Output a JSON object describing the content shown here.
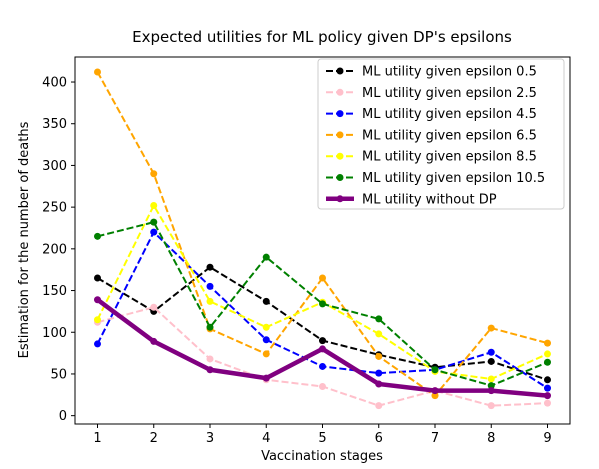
{
  "chart_data": {
    "type": "line",
    "title": "Expected utilities for ML policy given DP's epsilons",
    "xlabel": "Vaccination stages",
    "ylabel": "Estimation for the number of deaths",
    "x": [
      1,
      2,
      3,
      4,
      5,
      6,
      7,
      8,
      9
    ],
    "xlim": [
      0.6,
      9.4
    ],
    "ylim": [
      -10,
      430
    ],
    "xticks": [
      1,
      2,
      3,
      4,
      5,
      6,
      7,
      8,
      9
    ],
    "yticks": [
      0,
      50,
      100,
      150,
      200,
      250,
      300,
      350,
      400
    ],
    "grid": false,
    "legend_position": "top-right",
    "series": [
      {
        "name": "ML utility given epsilon 0.5",
        "color": "#000000",
        "dashed": true,
        "values": [
          165,
          125,
          178,
          137,
          90,
          73,
          58,
          65,
          43
        ]
      },
      {
        "name": "ML utility given epsilon 2.5",
        "color": "#ffc0cb",
        "dashed": true,
        "values": [
          112,
          130,
          68,
          43,
          35,
          12,
          30,
          12,
          15
        ]
      },
      {
        "name": "ML utility given epsilon 4.5",
        "color": "#0000ff",
        "dashed": true,
        "values": [
          86,
          220,
          155,
          91,
          59,
          51,
          55,
          76,
          33
        ]
      },
      {
        "name": "ML utility given epsilon 6.5",
        "color": "#ffa500",
        "dashed": true,
        "values": [
          412,
          290,
          104,
          74,
          165,
          71,
          24,
          105,
          87
        ]
      },
      {
        "name": "ML utility given epsilon 8.5",
        "color": "#ffff00",
        "dashed": true,
        "values": [
          115,
          252,
          137,
          106,
          136,
          98,
          53,
          44,
          74
        ]
      },
      {
        "name": "ML utility given epsilon 10.5",
        "color": "#008000",
        "dashed": true,
        "values": [
          215,
          232,
          106,
          190,
          134,
          116,
          55,
          36,
          64
        ]
      },
      {
        "name": "ML utility without DP",
        "color": "#800080",
        "dashed": false,
        "thick": true,
        "values": [
          139,
          89,
          55,
          45,
          80,
          38,
          30,
          30,
          24
        ]
      }
    ]
  }
}
